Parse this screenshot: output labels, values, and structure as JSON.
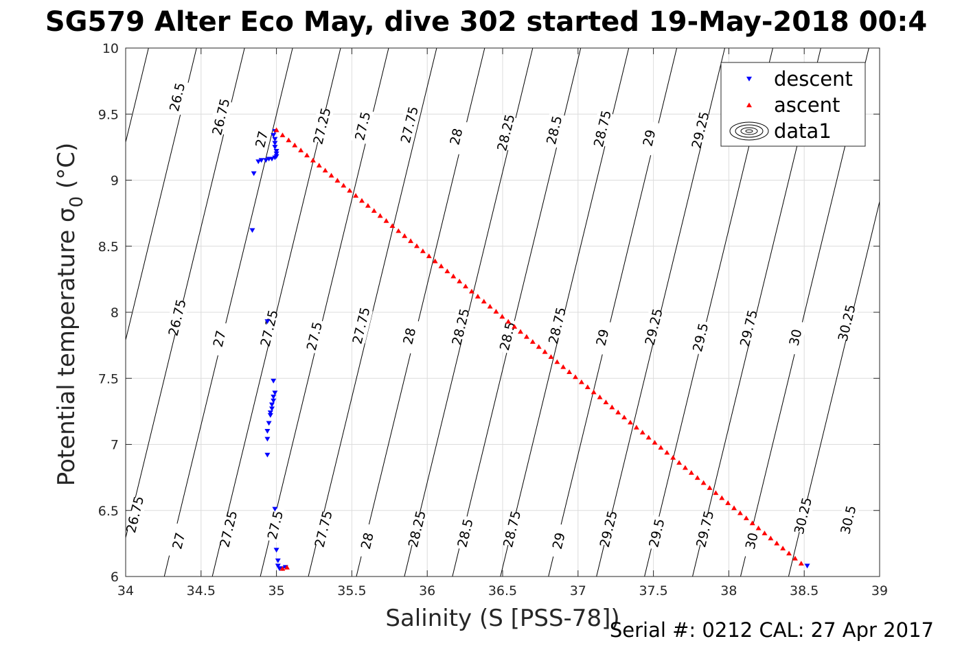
{
  "chart_data": {
    "type": "scatter",
    "title": "SG579 Alter Eco May, dive 302 started 19-May-2018 00:4",
    "xlabel": "Salinity (S [PSS-78])",
    "ylabel_main": "Potential temperature σ",
    "ylabel_subscript": "0",
    "ylabel_unit": " (°C)",
    "xlim": [
      34,
      39
    ],
    "ylim": [
      6,
      10
    ],
    "xticks": [
      "34",
      "34.5",
      "35",
      "35.5",
      "36",
      "36.5",
      "37",
      "37.5",
      "38",
      "38.5",
      "39"
    ],
    "yticks": [
      "6",
      "6.5",
      "7",
      "7.5",
      "8",
      "8.5",
      "9",
      "9.5",
      "10"
    ],
    "grid": true,
    "legend_position": "top-right",
    "contour_levels": [
      26.5,
      26.75,
      27,
      27.25,
      27.5,
      27.75,
      28,
      28.25,
      28.5,
      28.75,
      29,
      29.25,
      29.5,
      29.75,
      30,
      30.25,
      30.5
    ],
    "contour_labels": [
      {
        "text": "26.5",
        "s": 34.34,
        "t": 9.63
      },
      {
        "text": "26.75",
        "s": 34.63,
        "t": 9.48
      },
      {
        "text": "27",
        "s": 34.9,
        "t": 9.31
      },
      {
        "text": "27.25",
        "s": 35.3,
        "t": 9.41
      },
      {
        "text": "27.5",
        "s": 35.57,
        "t": 9.41
      },
      {
        "text": "27.75",
        "s": 35.88,
        "t": 9.42
      },
      {
        "text": "28",
        "s": 36.19,
        "t": 9.33
      },
      {
        "text": "28.25",
        "s": 36.52,
        "t": 9.36
      },
      {
        "text": "28.5",
        "s": 36.84,
        "t": 9.38
      },
      {
        "text": "28.75",
        "s": 37.16,
        "t": 9.39
      },
      {
        "text": "29",
        "s": 37.47,
        "t": 9.32
      },
      {
        "text": "29.25",
        "s": 37.81,
        "t": 9.38
      },
      {
        "text": "26.75",
        "s": 34.34,
        "t": 7.96
      },
      {
        "text": "27",
        "s": 34.62,
        "t": 7.8
      },
      {
        "text": "27.25",
        "s": 34.95,
        "t": 7.88
      },
      {
        "text": "27.5",
        "s": 35.25,
        "t": 7.82
      },
      {
        "text": "27.75",
        "s": 35.56,
        "t": 7.9
      },
      {
        "text": "28",
        "s": 35.88,
        "t": 7.82
      },
      {
        "text": "28.25",
        "s": 36.22,
        "t": 7.89
      },
      {
        "text": "28.5",
        "s": 36.53,
        "t": 7.82
      },
      {
        "text": "28.75",
        "s": 36.86,
        "t": 7.9
      },
      {
        "text": "29",
        "s": 37.16,
        "t": 7.81
      },
      {
        "text": "29.25",
        "s": 37.5,
        "t": 7.89
      },
      {
        "text": "29.5",
        "s": 37.81,
        "t": 7.81
      },
      {
        "text": "29.75",
        "s": 38.13,
        "t": 7.88
      },
      {
        "text": "30",
        "s": 38.44,
        "t": 7.81
      },
      {
        "text": "30.25",
        "s": 38.78,
        "t": 7.92
      },
      {
        "text": "26.75",
        "s": 34.06,
        "t": 6.47
      },
      {
        "text": "27",
        "s": 34.35,
        "t": 6.27
      },
      {
        "text": "27.25",
        "s": 34.68,
        "t": 6.36
      },
      {
        "text": "27.5",
        "s": 34.99,
        "t": 6.39
      },
      {
        "text": "27.75",
        "s": 35.31,
        "t": 6.36
      },
      {
        "text": "28",
        "s": 35.6,
        "t": 6.27
      },
      {
        "text": "28.25",
        "s": 35.93,
        "t": 6.36
      },
      {
        "text": "28.5",
        "s": 36.25,
        "t": 6.33
      },
      {
        "text": "28.75",
        "s": 36.56,
        "t": 6.36
      },
      {
        "text": "29",
        "s": 36.87,
        "t": 6.27
      },
      {
        "text": "29.25",
        "s": 37.2,
        "t": 6.36
      },
      {
        "text": "29.5",
        "s": 37.52,
        "t": 6.33
      },
      {
        "text": "29.75",
        "s": 37.84,
        "t": 6.36
      },
      {
        "text": "30",
        "s": 38.15,
        "t": 6.27
      },
      {
        "text": "30.25",
        "s": 38.49,
        "t": 6.46
      },
      {
        "text": "30.5",
        "s": 38.79,
        "t": 6.43
      }
    ],
    "series": [
      {
        "name": "descent",
        "color": "#0000ff",
        "marker": "triangle-down",
        "points": [
          [
            34.85,
            9.05
          ],
          [
            34.84,
            8.62
          ],
          [
            34.88,
            9.14
          ],
          [
            34.9,
            9.15
          ],
          [
            34.93,
            9.15
          ],
          [
            34.95,
            9.16
          ],
          [
            34.97,
            9.16
          ],
          [
            34.99,
            9.17
          ],
          [
            35.0,
            9.18
          ],
          [
            35.0,
            9.2
          ],
          [
            35.0,
            9.22
          ],
          [
            34.99,
            9.25
          ],
          [
            34.99,
            9.28
          ],
          [
            34.99,
            9.31
          ],
          [
            34.98,
            9.34
          ],
          [
            34.99,
            9.37
          ],
          [
            34.94,
            7.93
          ],
          [
            34.98,
            7.48
          ],
          [
            34.99,
            7.39
          ],
          [
            34.98,
            7.36
          ],
          [
            34.98,
            7.33
          ],
          [
            34.97,
            7.3
          ],
          [
            34.97,
            7.27
          ],
          [
            34.96,
            7.24
          ],
          [
            34.96,
            7.22
          ],
          [
            34.95,
            7.16
          ],
          [
            34.94,
            7.1
          ],
          [
            34.94,
            7.04
          ],
          [
            34.94,
            6.92
          ],
          [
            34.99,
            6.51
          ],
          [
            35.0,
            6.2
          ],
          [
            35.01,
            6.12
          ],
          [
            35.01,
            6.08
          ],
          [
            35.02,
            6.06
          ],
          [
            35.04,
            6.06
          ],
          [
            35.06,
            6.07
          ],
          [
            38.52,
            6.08
          ]
        ]
      },
      {
        "name": "ascent",
        "color": "#ff0000",
        "marker": "triangle-up",
        "points": [
          [
            35.0,
            9.38
          ],
          [
            35.07,
            6.07
          ],
          [
            35.04,
            6.06
          ]
        ],
        "line_from": [
          35.0,
          9.38
        ],
        "line_to": [
          38.48,
          6.1
        ],
        "line_count": 86
      }
    ],
    "legend_entries": [
      {
        "label": "descent",
        "marker": "triangle-down",
        "color": "#0000ff"
      },
      {
        "label": "ascent",
        "marker": "triangle-up",
        "color": "#ff0000"
      },
      {
        "label": "data1",
        "marker": "contour",
        "color": "#000000"
      }
    ],
    "footer": "Serial #: 0212  CAL: 27 Apr 2017"
  }
}
